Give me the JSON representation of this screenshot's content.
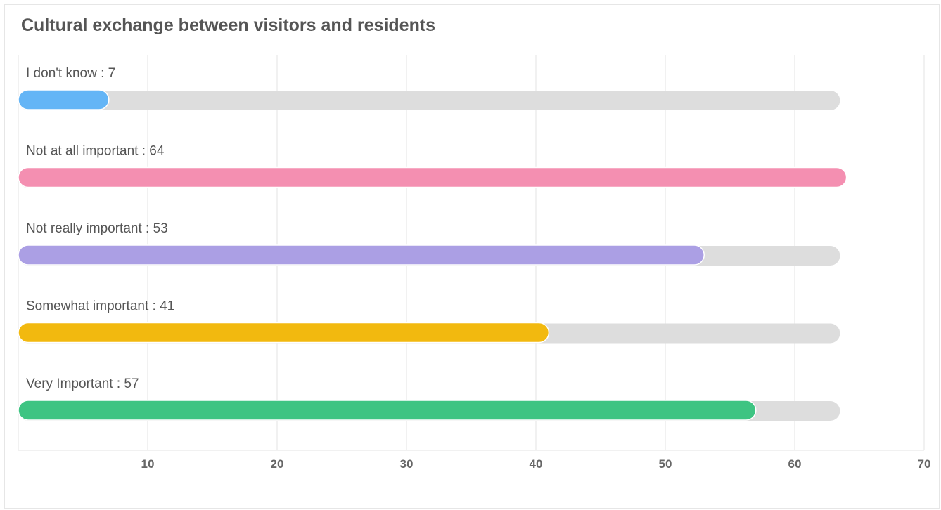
{
  "chart_data": {
    "type": "bar",
    "orientation": "horizontal",
    "title": "Cultural exchange between visitors and residents",
    "categories": [
      "I don't know",
      "Not at all important",
      "Not really important",
      "Somewhat important",
      "Very Important"
    ],
    "values": [
      7,
      64,
      53,
      41,
      57
    ],
    "colors": [
      "#64b5f6",
      "#f48fb1",
      "#ab9fe4",
      "#f2b90f",
      "#3ec482"
    ],
    "track_color": "#dddddd",
    "label_separator": " : ",
    "xlim": [
      0,
      70
    ],
    "x_ticks": [
      10,
      20,
      30,
      40,
      50,
      60,
      70
    ],
    "track_max": 63.5,
    "grid": true,
    "xlabel": "",
    "ylabel": ""
  }
}
